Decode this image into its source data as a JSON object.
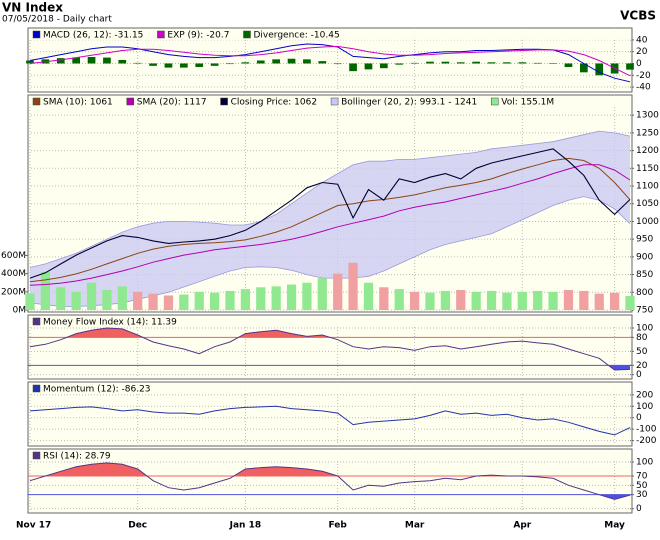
{
  "chart_data": {
    "type": "stock",
    "title": "VN Index",
    "subtitle": "07/05/2018 - Daily chart",
    "source": "VCBS",
    "categories": [
      "Nov 17",
      null,
      null,
      null,
      null,
      null,
      null,
      "Dec",
      null,
      null,
      null,
      null,
      null,
      null,
      "Jan 18",
      null,
      null,
      null,
      null,
      null,
      "Feb",
      null,
      null,
      null,
      null,
      "Mar",
      null,
      null,
      null,
      null,
      null,
      null,
      "Apr",
      null,
      null,
      null,
      null,
      null,
      "May",
      null
    ],
    "panels": [
      {
        "ylim": [
          -45,
          50
        ],
        "yticks": [
          40,
          20,
          0,
          -20,
          -40
        ],
        "grid": true,
        "series": [
          {
            "name": "MACD (26, 12): -31.15",
            "kind": "line",
            "color": "#0000cc",
            "values": [
              5,
              10,
              15,
              20,
              25,
              28,
              28,
              25,
              20,
              15,
              12,
              10,
              10,
              12,
              15,
              20,
              25,
              30,
              33,
              32,
              28,
              12,
              10,
              8,
              12,
              15,
              18,
              20,
              20,
              22,
              22,
              23,
              24,
              24,
              23,
              15,
              0,
              -15,
              -25,
              -31.15
            ]
          },
          {
            "name": "EXP (9): -20.7",
            "kind": "line",
            "color": "#cc00cc",
            "values": [
              0,
              3,
              6,
              10,
              14,
              18,
              22,
              24,
              24,
              22,
              19,
              16,
              14,
              13,
              13,
              15,
              18,
              22,
              26,
              28,
              29,
              25,
              20,
              16,
              14,
              14,
              15,
              17,
              18,
              19,
              20,
              21,
              22,
              23,
              23,
              21,
              15,
              5,
              -8,
              -20.7
            ]
          },
          {
            "name": "Divergence: -10.45",
            "kind": "bar",
            "color": "#006600",
            "values": [
              5,
              7,
              9,
              10,
              11,
              10,
              6,
              1,
              -4,
              -7,
              -7,
              -6,
              -4,
              -1,
              2,
              5,
              7,
              8,
              7,
              4,
              -1,
              -13,
              -10,
              -8,
              -2,
              1,
              3,
              3,
              2,
              3,
              2,
              2,
              2,
              1,
              0,
              -6,
              -15,
              -20,
              -17,
              -10.45
            ]
          }
        ]
      },
      {
        "ylim": [
          750,
          1340
        ],
        "yticks": [
          750,
          800,
          850,
          900,
          950,
          1000,
          1050,
          1100,
          1150,
          1200,
          1250,
          1300
        ],
        "grid": true,
        "y2lim": [
          0,
          2300
        ],
        "y2ticks": [
          {
            "value": 0,
            "label": "0M"
          },
          {
            "value": 200,
            "label": "200M"
          },
          {
            "value": 400,
            "label": "400M"
          },
          {
            "value": 600,
            "label": "600M"
          }
        ],
        "series": [
          {
            "name": "SMA (10): 1061",
            "kind": "line",
            "color": "#8b4513",
            "values": [
              830,
              835,
              842,
              852,
              865,
              880,
              895,
              910,
              922,
              930,
              935,
              938,
              940,
              943,
              948,
              958,
              970,
              985,
              1005,
              1025,
              1045,
              1050,
              1058,
              1062,
              1068,
              1075,
              1085,
              1095,
              1102,
              1110,
              1120,
              1135,
              1148,
              1160,
              1172,
              1178,
              1172,
              1150,
              1110,
              1061
            ]
          },
          {
            "name": "SMA (20): 1117",
            "kind": "line",
            "color": "#b000b0",
            "values": [
              820,
              822,
              826,
              832,
              840,
              850,
              860,
              872,
              885,
              895,
              905,
              912,
              920,
              925,
              930,
              935,
              942,
              950,
              960,
              972,
              985,
              995,
              1005,
              1015,
              1030,
              1040,
              1048,
              1055,
              1065,
              1075,
              1085,
              1095,
              1108,
              1120,
              1135,
              1148,
              1160,
              1160,
              1145,
              1117
            ]
          },
          {
            "name": "Closing Price: 1062",
            "kind": "close",
            "color": "#000033",
            "values": [
              840,
              855,
              880,
              905,
              925,
              945,
              960,
              955,
              945,
              938,
              942,
              945,
              950,
              960,
              975,
              1000,
              1030,
              1060,
              1095,
              1110,
              1105,
              1010,
              1090,
              1060,
              1120,
              1110,
              1125,
              1135,
              1120,
              1150,
              1165,
              1175,
              1185,
              1195,
              1205,
              1170,
              1130,
              1060,
              1020,
              1062
            ]
          },
          {
            "name": "Bollinger (20, 2): 993.1 - 1241",
            "kind": "band",
            "color": "#9999dd",
            "upper": [
              870,
              880,
              895,
              910,
              930,
              950,
              970,
              985,
              995,
              1000,
              1000,
              998,
              995,
              990,
              990,
              1000,
              1020,
              1050,
              1080,
              1110,
              1135,
              1160,
              1170,
              1170,
              1175,
              1175,
              1180,
              1185,
              1190,
              1195,
              1205,
              1210,
              1215,
              1220,
              1225,
              1235,
              1245,
              1255,
              1250,
              1241
            ],
            "lower": [
              770,
              765,
              760,
              760,
              762,
              765,
              770,
              780,
              790,
              800,
              815,
              830,
              845,
              860,
              870,
              872,
              870,
              862,
              850,
              840,
              840,
              840,
              845,
              860,
              880,
              900,
              920,
              935,
              945,
              955,
              965,
              985,
              1005,
              1025,
              1045,
              1060,
              1070,
              1060,
              1035,
              993.1
            ]
          },
          {
            "name": "Vol: 155.1M",
            "kind": "volume",
            "axis": "y2",
            "color": "#90e890",
            "down_color": "#f0a0a0",
            "values": [
              180,
              420,
              250,
              200,
              300,
              220,
              260,
              200,
              180,
              160,
              170,
              200,
              190,
              210,
              230,
              250,
              260,
              280,
              300,
              350,
              400,
              520,
              300,
              250,
              230,
              200,
              190,
              210,
              220,
              200,
              210,
              190,
              200,
              210,
              200,
              220,
              210,
              180,
              190,
              155.1
            ]
          }
        ]
      },
      {
        "ylim": [
          -5,
          115
        ],
        "yticks": [
          100,
          80,
          50,
          20,
          0
        ],
        "grid": true,
        "fills": [
          {
            "level": 80,
            "side": "above",
            "color": "#f06060"
          },
          {
            "level": 20,
            "side": "below",
            "color": "#5050e0"
          }
        ],
        "series": [
          {
            "name": "Money Flow Index (14): 11.39",
            "kind": "line",
            "color": "#553388",
            "values": [
              60,
              65,
              75,
              88,
              95,
              100,
              98,
              85,
              70,
              62,
              55,
              45,
              60,
              70,
              88,
              92,
              95,
              88,
              82,
              85,
              75,
              60,
              55,
              60,
              58,
              52,
              60,
              62,
              55,
              60,
              65,
              70,
              72,
              68,
              65,
              55,
              45,
              35,
              10,
              11.39
            ]
          }
        ]
      },
      {
        "ylim": [
          -230,
          260
        ],
        "yticks": [
          200,
          100,
          0,
          -100,
          -200
        ],
        "grid": true,
        "series": [
          {
            "name": "Momentum (12): -86.23",
            "kind": "line",
            "color": "#2233aa",
            "values": [
              60,
              70,
              80,
              90,
              95,
              80,
              60,
              70,
              50,
              40,
              40,
              30,
              60,
              80,
              90,
              95,
              100,
              80,
              70,
              60,
              40,
              -60,
              -40,
              -30,
              -20,
              -10,
              20,
              60,
              30,
              40,
              20,
              30,
              0,
              -20,
              -10,
              -40,
              -80,
              -120,
              -150,
              -86.23
            ]
          }
        ]
      },
      {
        "ylim": [
          -5,
          115
        ],
        "yticks": [
          100,
          70,
          50,
          30,
          0
        ],
        "grid": true,
        "fills": [
          {
            "level": 70,
            "side": "above",
            "color": "#f06060"
          },
          {
            "level": 30,
            "side": "below",
            "color": "#5050e0"
          }
        ],
        "series": [
          {
            "name": "RSI (14): 28.79",
            "kind": "line",
            "color": "#553388",
            "values": [
              60,
              70,
              80,
              90,
              95,
              98,
              95,
              85,
              60,
              45,
              40,
              45,
              55,
              65,
              85,
              88,
              90,
              88,
              85,
              80,
              70,
              40,
              50,
              48,
              55,
              58,
              60,
              65,
              62,
              70,
              72,
              70,
              70,
              68,
              65,
              50,
              40,
              30,
              20,
              28.79
            ]
          }
        ]
      }
    ]
  }
}
